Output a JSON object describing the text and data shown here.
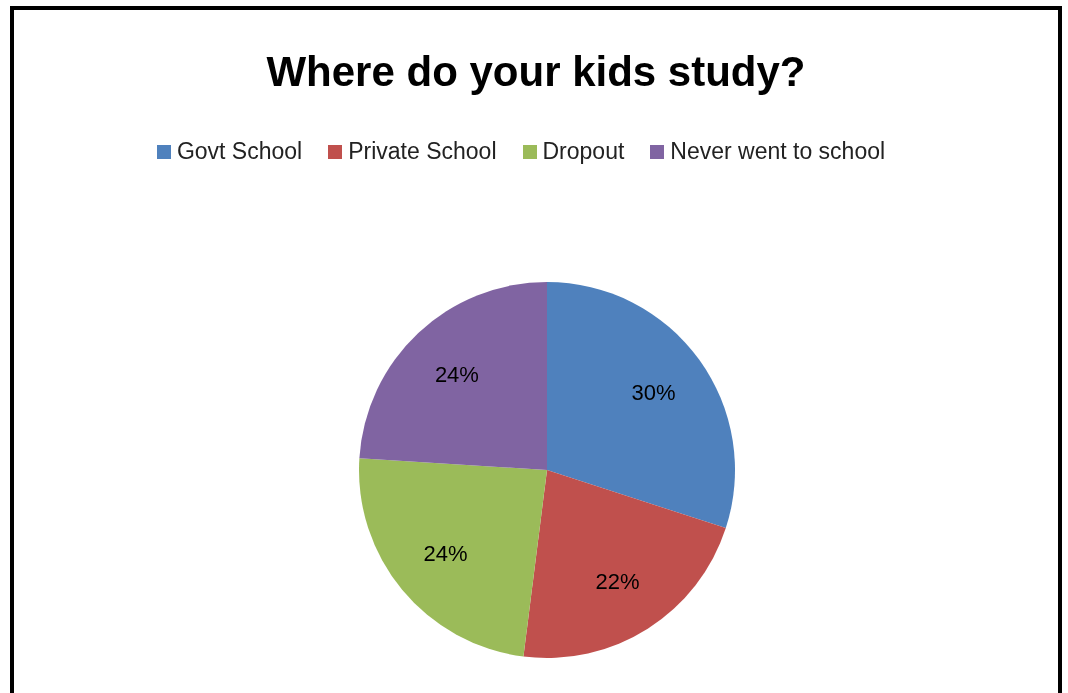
{
  "chart_data": {
    "type": "pie",
    "title": "Where do your kids study?",
    "categories": [
      "Govt School",
      "Private School",
      "Dropout",
      "Never went to school"
    ],
    "values": [
      30,
      22,
      24,
      24
    ],
    "colors": [
      "#4f81bd",
      "#c0504d",
      "#9bbb59",
      "#8064a2"
    ],
    "value_labels": [
      "30%",
      "22%",
      "24%",
      "24%"
    ],
    "legend": "top"
  }
}
